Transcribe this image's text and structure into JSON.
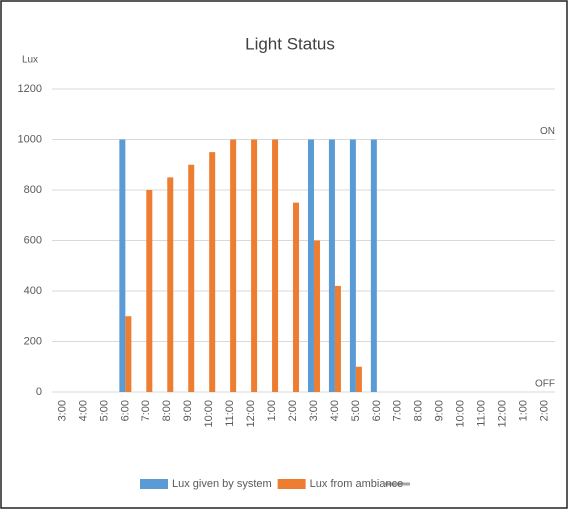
{
  "chart_data": {
    "type": "bar",
    "title": "Light Status",
    "y_label": "Lux",
    "categories": [
      "3:00",
      "4:00",
      "5:00",
      "6:00",
      "7:00",
      "8:00",
      "9:00",
      "10:00",
      "11:00",
      "12:00",
      "1:00",
      "2:00",
      "3:00",
      "4:00",
      "5:00",
      "6:00",
      "7:00",
      "8:00",
      "9:00",
      "10:00",
      "11:00",
      "12:00",
      "1:00",
      "2:00"
    ],
    "series": [
      {
        "name": "Lux given by system",
        "color": "#5b9bd5",
        "values": [
          0,
          0,
          0,
          1000,
          0,
          0,
          0,
          0,
          0,
          0,
          0,
          0,
          1000,
          1000,
          1000,
          1000,
          0,
          0,
          0,
          0,
          0,
          0,
          0,
          0
        ]
      },
      {
        "name": "Lux from ambiance",
        "color": "#ed7d31",
        "values": [
          0,
          0,
          0,
          300,
          800,
          850,
          900,
          950,
          1000,
          1000,
          1000,
          750,
          600,
          420,
          100,
          0,
          0,
          0,
          0,
          0,
          0,
          0,
          0,
          0
        ]
      }
    ],
    "ylim": [
      0,
      1200
    ],
    "yticks": [
      0,
      200,
      400,
      600,
      800,
      1000,
      1200
    ],
    "grid": true,
    "annotations": [
      {
        "text": "ON",
        "value": 1000
      },
      {
        "text": "OFF",
        "value": 0
      }
    ]
  }
}
